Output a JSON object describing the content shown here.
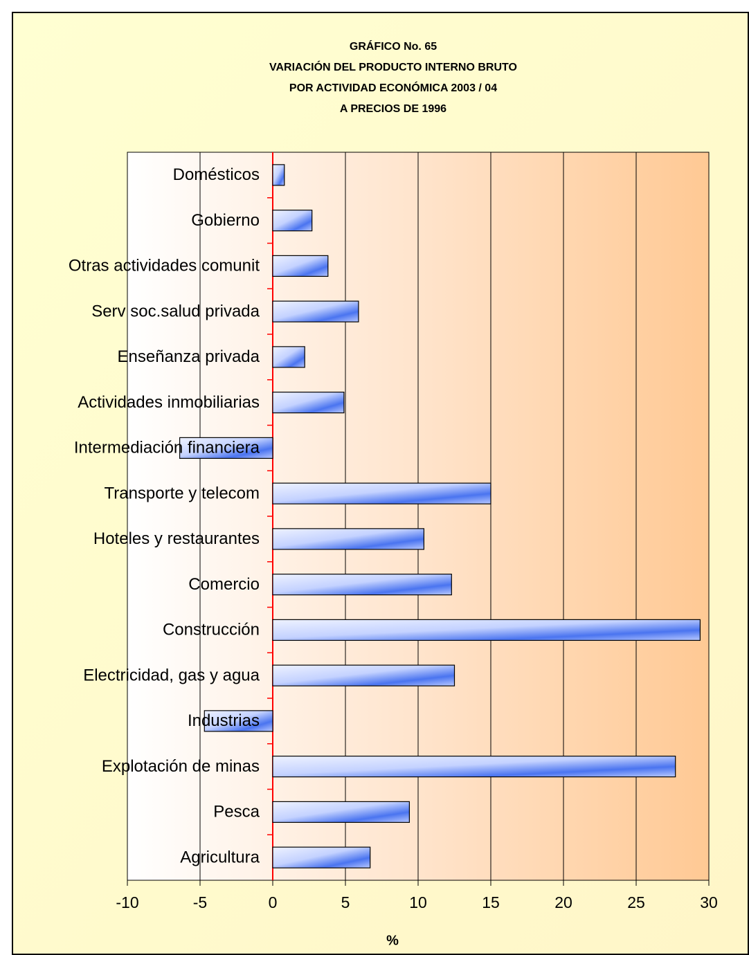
{
  "chart_data": {
    "type": "bar",
    "orientation": "horizontal",
    "title": [
      "GRÁFICO No. 65",
      "VARIACIÓN DEL PRODUCTO INTERNO BRUTO",
      "POR ACTIVIDAD ECONÓMICA 2003 / 04",
      "A PRECIOS DE 1996"
    ],
    "xlabel": "%",
    "categories": [
      "Domésticos",
      "Gobierno",
      "Otras actividades comunit",
      "Serv soc.salud privada",
      "Enseñanza privada",
      "Actividades  inmobiliarias",
      "Intermediación  financiera",
      "Transporte y telecom",
      "Hoteles  y  restaurantes",
      "Comercio",
      "Construcción",
      "Electricidad, gas y agua",
      "Industrias",
      "Explotación de minas",
      "Pesca",
      "Agricultura"
    ],
    "values": [
      0.8,
      2.7,
      3.8,
      5.9,
      2.2,
      4.9,
      -6.4,
      15.0,
      10.4,
      12.3,
      29.4,
      12.5,
      -4.7,
      27.7,
      9.4,
      6.7
    ],
    "color": "#3d6cf2",
    "xlim": [
      -10,
      30
    ],
    "xticks": [
      -10,
      -5,
      0,
      5,
      10,
      15,
      20,
      25,
      30
    ],
    "grid": true,
    "zero_line_color": "#ff0000"
  }
}
